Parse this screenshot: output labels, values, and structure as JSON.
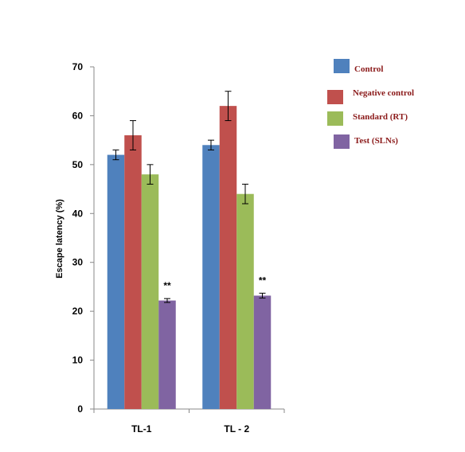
{
  "chart_data": {
    "type": "bar",
    "ylabel": "Escape latency (%)",
    "xlabel": "",
    "title": "",
    "ylim": [
      0,
      70
    ],
    "yticks": [
      0,
      10,
      20,
      30,
      40,
      50,
      60,
      70
    ],
    "categories": [
      "TL-1",
      "TL - 2"
    ],
    "series": [
      {
        "name": "Control",
        "color": "#4f81bd",
        "values": [
          52,
          54
        ],
        "errors": [
          1,
          1
        ]
      },
      {
        "name": "Negative control",
        "color": "#c0504d",
        "values": [
          56,
          62
        ],
        "errors": [
          3,
          3
        ]
      },
      {
        "name": "Standard (RT)",
        "color": "#9bbb59",
        "values": [
          48,
          44
        ],
        "errors": [
          2,
          2
        ]
      },
      {
        "name": "Test (SLNs)",
        "color": "#8064a2",
        "values": [
          22.2,
          23.2
        ],
        "errors": [
          0.4,
          0.5
        ]
      }
    ],
    "annotations": [
      {
        "category_index": 0,
        "series_index": 3,
        "text": "**"
      },
      {
        "category_index": 1,
        "series_index": 3,
        "text": "**"
      }
    ],
    "legend_position": "top-right",
    "grid": false
  }
}
